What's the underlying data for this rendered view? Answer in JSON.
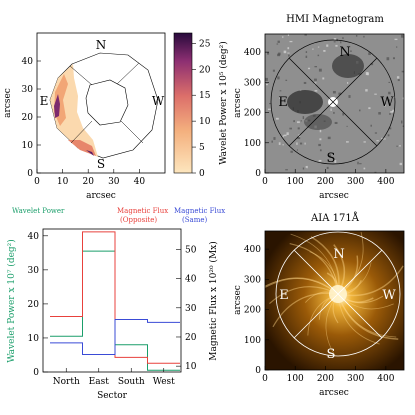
{
  "chart_data": [
    {
      "type": "heatmap",
      "xlabel": "arcsec",
      "ylabel": "arcsec",
      "xlim": [
        0,
        50
      ],
      "ylim": [
        0,
        50
      ],
      "xticks": [
        "0",
        "10",
        "20",
        "30",
        "40"
      ],
      "yticks": [
        "0",
        "10",
        "20",
        "30",
        "40"
      ],
      "directions": {
        "n": "N",
        "s": "S",
        "e": "E",
        "w": "W"
      },
      "colorbar": {
        "label": "Wavelet Power x 10⁵ (deg²)",
        "ticks": [
          "0",
          "5",
          "10",
          "15",
          "20",
          "25"
        ],
        "range": [
          0,
          27
        ]
      },
      "colors": {
        "low": "#fde2b8",
        "mid": "#e9916a",
        "high": "#8a2a6b",
        "max": "#2a0a3a"
      }
    },
    {
      "type": "heatmap",
      "title": "HMI Magnetogram",
      "xlabel": "arcsec",
      "ylabel": "arcsec",
      "xlim": [
        0,
        460
      ],
      "ylim": [
        0,
        460
      ],
      "xticks": [
        "0",
        "100",
        "200",
        "300",
        "400"
      ],
      "yticks": [
        "0",
        "100",
        "200",
        "300",
        "400"
      ],
      "directions": {
        "n": "N",
        "s": "S",
        "e": "E",
        "w": "W"
      },
      "colors": {
        "background": "#8f8f8f"
      }
    },
    {
      "type": "bar",
      "categories": [
        "North",
        "East",
        "South",
        "West"
      ],
      "xlabel": "Sector",
      "ylabel": "Wavelet Power x 10⁷ (deg²)",
      "y2label": "Magnetic Flux x 10²⁰ (Mx)",
      "ylim": [
        0,
        42
      ],
      "y2lim": [
        8,
        57
      ],
      "yticks": [
        0,
        10,
        20,
        30,
        40
      ],
      "y2ticks": [
        10,
        20,
        30,
        40,
        50
      ],
      "grid": false,
      "series": [
        {
          "name": "Wavelet Power",
          "axis": "left",
          "values": [
            10.5,
            35.5,
            8,
            0.5
          ],
          "color": "#1a9e6a"
        },
        {
          "name": "Magnetic Flux (Opposite)",
          "axis": "right",
          "values": [
            27,
            56,
            13,
            11
          ],
          "color": "#e8413c"
        },
        {
          "name": "Magnetic Flux (Same)",
          "axis": "right",
          "values": [
            18,
            14,
            26,
            25
          ],
          "color": "#3a4bd6"
        }
      ]
    },
    {
      "type": "heatmap",
      "title": "AIA 171Å",
      "xlabel": "arcsec",
      "ylabel": "arcsec",
      "xlim": [
        0,
        460
      ],
      "ylim": [
        0,
        460
      ],
      "xticks": [
        "0",
        "100",
        "200",
        "300",
        "400"
      ],
      "yticks": [
        "0",
        "100",
        "200",
        "300",
        "400"
      ],
      "directions": {
        "n": "N",
        "s": "S",
        "e": "E",
        "w": "W"
      },
      "colors": {
        "dark": "#2a1400",
        "mid": "#b8740c",
        "bright": "#ffe7a3"
      }
    }
  ]
}
